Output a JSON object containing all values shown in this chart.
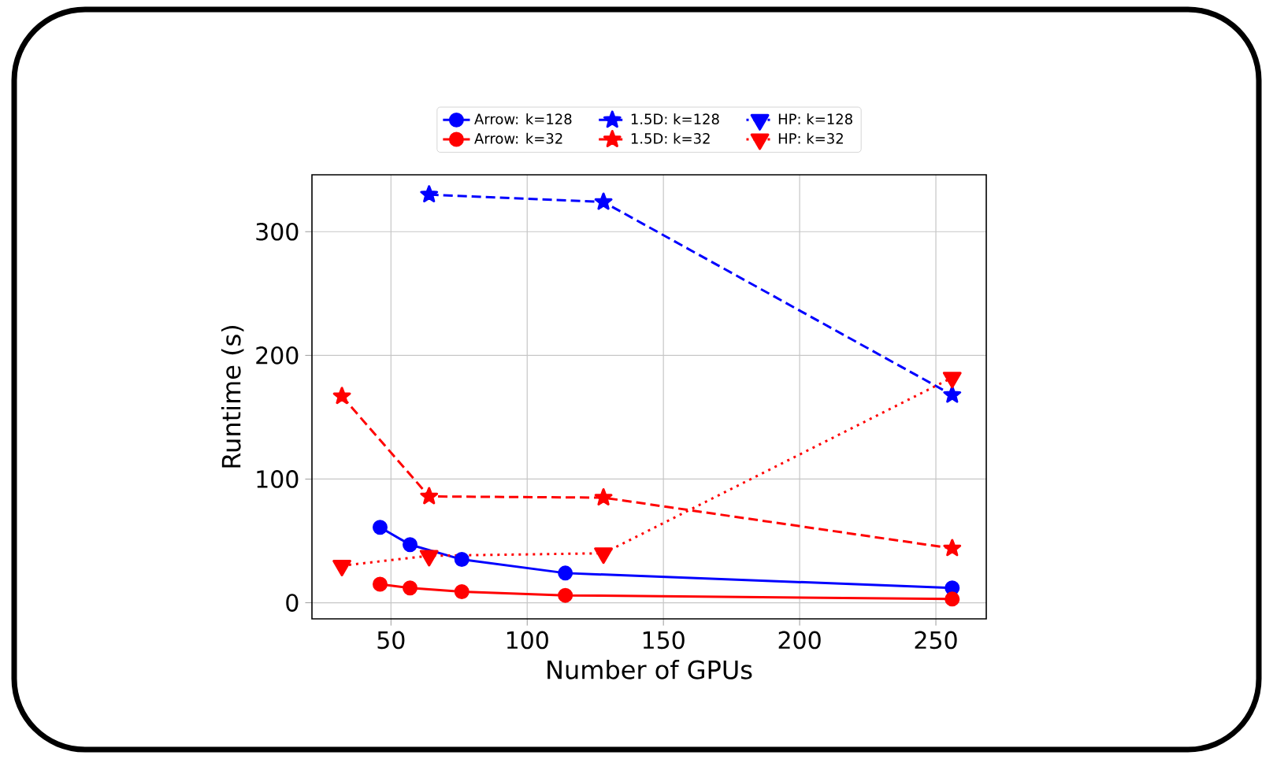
{
  "chart_data": {
    "type": "line",
    "xlabel": "Number of GPUs",
    "ylabel": "Runtime (s)",
    "xlim": [
      21,
      268.5
    ],
    "ylim": [
      -13,
      346
    ],
    "xticks": [
      50,
      100,
      150,
      200,
      250
    ],
    "yticks": [
      0,
      100,
      200,
      300
    ],
    "grid": true,
    "legend": "top",
    "series": [
      {
        "name": "Arrow: k=128",
        "color": "#0000ff",
        "marker": "circle",
        "line_style": "solid",
        "x": [
          46,
          57,
          76,
          114,
          256
        ],
        "values": [
          61,
          47,
          35,
          24,
          12
        ]
      },
      {
        "name": "Arrow: k=32",
        "color": "#ff0000",
        "marker": "circle",
        "line_style": "solid",
        "x": [
          46,
          57,
          76,
          114,
          256
        ],
        "values": [
          15,
          12,
          9,
          6,
          3
        ]
      },
      {
        "name": "1.5D: k=128",
        "color": "#0000ff",
        "marker": "star",
        "line_style": "dashed",
        "x": [
          64,
          128,
          256
        ],
        "values": [
          330,
          324,
          168
        ]
      },
      {
        "name": "1.5D: k=32",
        "color": "#ff0000",
        "marker": "star",
        "line_style": "dashed",
        "x": [
          32,
          64,
          128,
          256
        ],
        "values": [
          167,
          86,
          85,
          44
        ]
      },
      {
        "name": "HP: k=128",
        "color": "#0000ff",
        "marker": "triangle",
        "line_style": "dotted"
      },
      {
        "name": "HP: k=32",
        "color": "#ff0000",
        "marker": "triangle",
        "line_style": "dotted",
        "x": [
          32,
          64,
          128,
          256
        ],
        "values": [
          30,
          38,
          40,
          182
        ]
      }
    ]
  }
}
